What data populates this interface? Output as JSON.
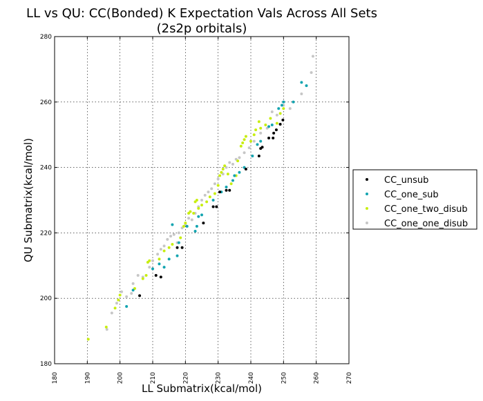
{
  "chart_data": {
    "type": "scatter",
    "title_line1": "LL vs QU: CC(Bonded) K Expectation Vals Across All Sets",
    "title_line2": "(2s2p orbitals)",
    "xlabel": "LL Submatrix(kcal/mol)",
    "ylabel": "QU Submatrix(kcal/mol)",
    "xlim": [
      180,
      270
    ],
    "ylim": [
      180,
      280
    ],
    "xticks": [
      "180",
      "190",
      "200",
      "210",
      "220",
      "230",
      "240",
      "250",
      "260",
      "270"
    ],
    "yticks": [
      "180",
      "200",
      "220",
      "240",
      "260",
      "280"
    ],
    "grid": true,
    "legend_position": "outside-right",
    "series": [
      {
        "name": "CC_unsub",
        "color": "#000000",
        "points": [
          [
            206.0,
            200.8
          ],
          [
            211.0,
            207.0
          ],
          [
            212.5,
            206.5
          ],
          [
            217.5,
            215.5
          ],
          [
            219.0,
            215.5
          ],
          [
            225.5,
            223.0
          ],
          [
            228.5,
            228.0
          ],
          [
            229.5,
            228.0
          ],
          [
            230.5,
            232.5
          ],
          [
            232.5,
            233.0
          ],
          [
            233.5,
            233.0
          ],
          [
            238.5,
            239.5
          ],
          [
            242.5,
            243.5
          ],
          [
            243.0,
            245.8
          ],
          [
            243.5,
            246.2
          ],
          [
            245.5,
            249.0
          ],
          [
            246.8,
            249.0
          ],
          [
            247.0,
            250.5
          ],
          [
            247.8,
            251.5
          ],
          [
            249.0,
            253.2
          ],
          [
            249.8,
            254.5
          ]
        ]
      },
      {
        "name": "CC_one_sub",
        "color": "#12a4b0",
        "points": [
          [
            202.0,
            197.5
          ],
          [
            204.0,
            202.5
          ],
          [
            210.0,
            209.0
          ],
          [
            212.0,
            210.5
          ],
          [
            213.5,
            209.5
          ],
          [
            215.0,
            212.0
          ],
          [
            216.0,
            222.5
          ],
          [
            217.5,
            213.0
          ],
          [
            218.0,
            217.0
          ],
          [
            220.5,
            222.0
          ],
          [
            223.0,
            220.5
          ],
          [
            223.5,
            222.0
          ],
          [
            224.0,
            225.0
          ],
          [
            225.0,
            225.5
          ],
          [
            228.5,
            230.0
          ],
          [
            231.0,
            232.5
          ],
          [
            232.5,
            234.0
          ],
          [
            234.5,
            236.0
          ],
          [
            235.0,
            237.5
          ],
          [
            236.5,
            238.5
          ],
          [
            238.0,
            240.0
          ],
          [
            240.5,
            243.5
          ],
          [
            242.0,
            247.0
          ],
          [
            243.0,
            248.0
          ],
          [
            245.5,
            252.5
          ],
          [
            246.5,
            253.0
          ],
          [
            248.5,
            258.0
          ],
          [
            249.5,
            259.0
          ],
          [
            250.0,
            260.0
          ],
          [
            253.0,
            260.0
          ],
          [
            255.5,
            266.0
          ],
          [
            257.0,
            265.0
          ]
        ]
      },
      {
        "name": "CC_one_two_disub",
        "color": "#c8ee10",
        "points": [
          [
            190.3,
            187.5
          ],
          [
            195.8,
            191.2
          ],
          [
            198.5,
            197.0
          ],
          [
            199.5,
            199.5
          ],
          [
            200.0,
            201.0
          ],
          [
            204.5,
            203.0
          ],
          [
            207.0,
            206.0
          ],
          [
            208.0,
            207.0
          ],
          [
            208.5,
            211.0
          ],
          [
            209.0,
            211.5
          ],
          [
            212.0,
            212.0
          ],
          [
            213.5,
            214.5
          ],
          [
            215.0,
            215.5
          ],
          [
            216.0,
            216.5
          ],
          [
            218.5,
            218.5
          ],
          [
            219.5,
            222.0
          ],
          [
            220.0,
            223.0
          ],
          [
            221.0,
            226.0
          ],
          [
            221.5,
            226.5
          ],
          [
            222.5,
            226.0
          ],
          [
            223.0,
            229.5
          ],
          [
            223.5,
            230.0
          ],
          [
            224.0,
            227.5
          ],
          [
            225.0,
            228.5
          ],
          [
            226.5,
            229.5
          ],
          [
            227.5,
            231.0
          ],
          [
            229.0,
            232.0
          ],
          [
            230.0,
            234.5
          ],
          [
            230.5,
            237.5
          ],
          [
            231.0,
            238.5
          ],
          [
            231.5,
            239.5
          ],
          [
            232.0,
            240.5
          ],
          [
            233.0,
            238.0
          ],
          [
            234.0,
            235.0
          ],
          [
            235.5,
            237.5
          ],
          [
            236.0,
            242.0
          ],
          [
            237.0,
            246.5
          ],
          [
            237.5,
            247.5
          ],
          [
            238.0,
            248.5
          ],
          [
            238.5,
            249.5
          ],
          [
            240.0,
            248.0
          ],
          [
            241.0,
            250.0
          ],
          [
            241.5,
            251.5
          ],
          [
            242.5,
            254.0
          ],
          [
            243.0,
            252.0
          ],
          [
            244.5,
            253.0
          ],
          [
            246.0,
            255.0
          ],
          [
            248.0,
            253.5
          ],
          [
            249.0,
            256.5
          ],
          [
            250.0,
            258.0
          ]
        ]
      },
      {
        "name": "CC_one_one_disub",
        "color": "#c6c6c6",
        "points": [
          [
            196.0,
            190.5
          ],
          [
            197.5,
            195.5
          ],
          [
            199.0,
            198.5
          ],
          [
            200.5,
            202.0
          ],
          [
            202.0,
            200.5
          ],
          [
            203.5,
            201.5
          ],
          [
            204.0,
            204.5
          ],
          [
            205.5,
            207.0
          ],
          [
            207.0,
            206.5
          ],
          [
            209.0,
            209.5
          ],
          [
            210.0,
            211.5
          ],
          [
            211.5,
            213.5
          ],
          [
            212.5,
            215.0
          ],
          [
            213.5,
            216.0
          ],
          [
            214.5,
            218.0
          ],
          [
            215.5,
            219.0
          ],
          [
            216.5,
            219.5
          ],
          [
            217.5,
            217.0
          ],
          [
            218.0,
            220.0
          ],
          [
            219.0,
            221.5
          ],
          [
            220.0,
            222.5
          ],
          [
            221.0,
            224.5
          ],
          [
            222.0,
            224.0
          ],
          [
            223.0,
            226.0
          ],
          [
            224.0,
            228.0
          ],
          [
            225.0,
            230.0
          ],
          [
            226.0,
            231.5
          ],
          [
            227.0,
            232.5
          ],
          [
            228.0,
            233.5
          ],
          [
            229.0,
            235.0
          ],
          [
            230.0,
            236.5
          ],
          [
            231.5,
            238.0
          ],
          [
            232.5,
            240.0
          ],
          [
            233.5,
            241.5
          ],
          [
            234.5,
            241.0
          ],
          [
            235.5,
            242.5
          ],
          [
            236.5,
            243.0
          ],
          [
            238.0,
            244.5
          ],
          [
            239.5,
            246.0
          ],
          [
            241.0,
            248.0
          ],
          [
            243.0,
            250.5
          ],
          [
            245.0,
            252.0
          ],
          [
            246.5,
            257.0
          ],
          [
            248.0,
            256.0
          ],
          [
            250.0,
            259.0
          ],
          [
            252.0,
            258.0
          ],
          [
            255.5,
            262.5
          ],
          [
            258.5,
            269.0
          ],
          [
            259.0,
            274.0
          ]
        ]
      }
    ]
  }
}
